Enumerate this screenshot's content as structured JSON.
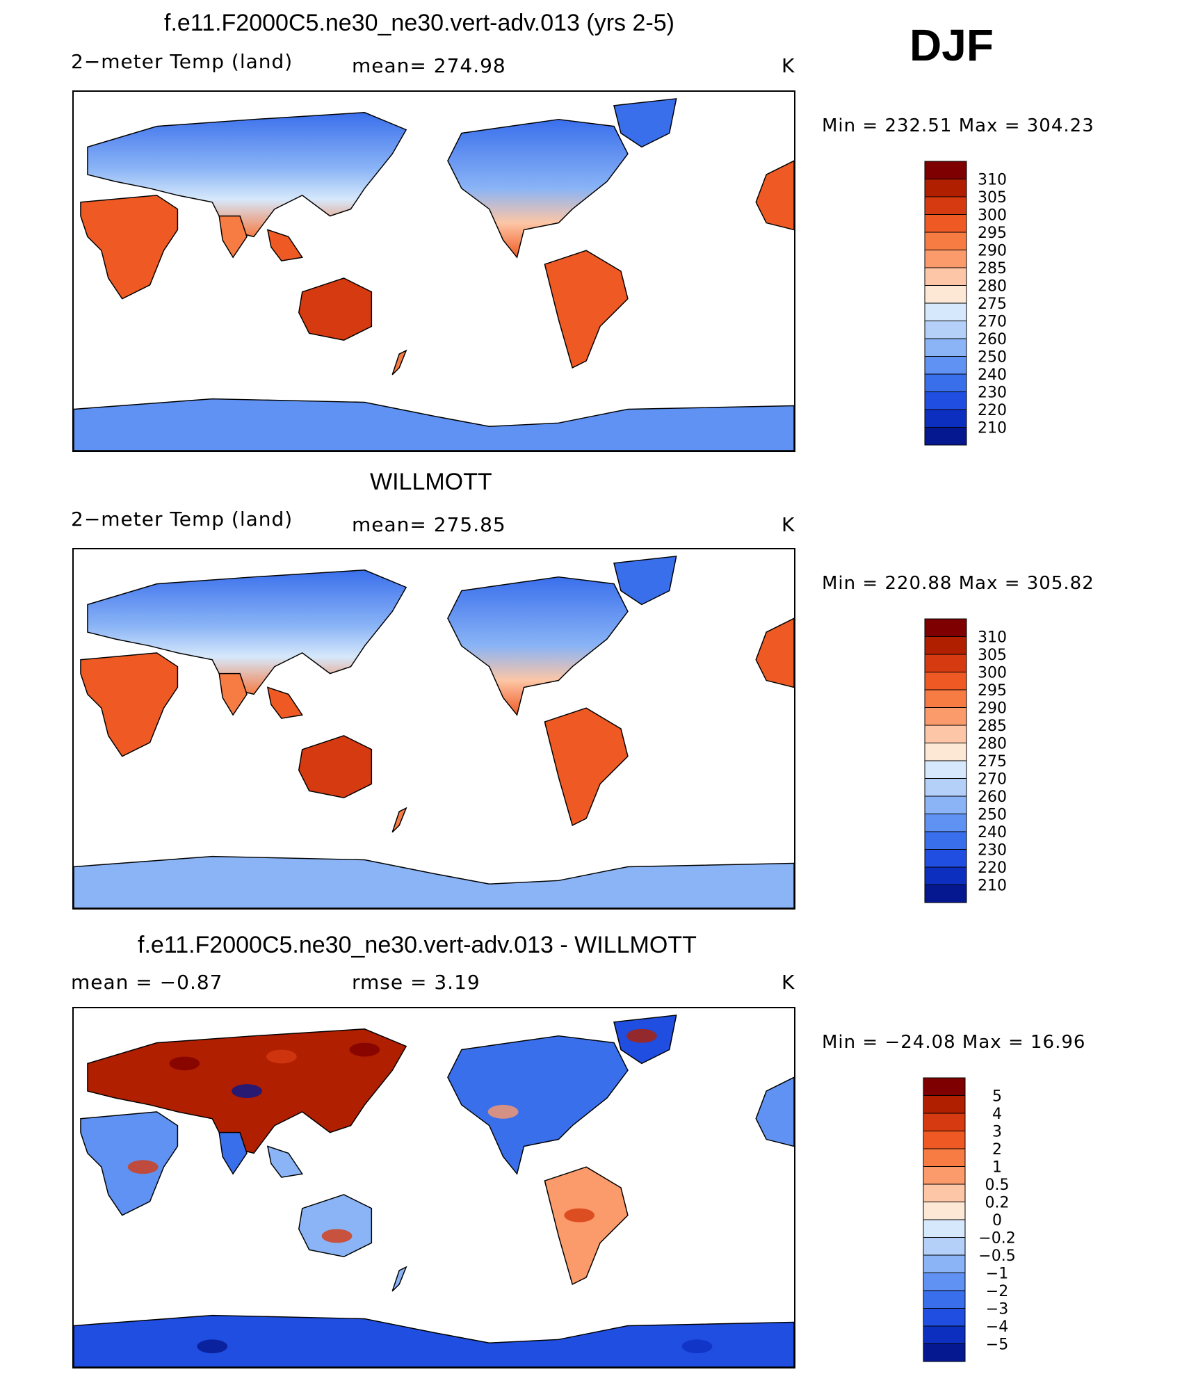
{
  "header": {
    "season": "DJF"
  },
  "panels": [
    {
      "title": "f.e11.F2000C5.ne30_ne30.vert-adv.013 (yrs 2-5)",
      "left_label": "2−meter Temp (land)",
      "mid_label": "mean=  274.98",
      "units": "K",
      "minmax": "Min  =  232.51  Max  =  304.23",
      "colorbar_labels": [
        "310",
        "305",
        "300",
        "295",
        "290",
        "285",
        "280",
        "275",
        "270",
        "260",
        "250",
        "240",
        "230",
        "220",
        "210"
      ],
      "map_caption": "model-temperature-map"
    },
    {
      "title": "WILLMOTT",
      "left_label": "2−meter Temp (land)",
      "mid_label": "mean=  275.85",
      "units": "K",
      "minmax": "Min  =  220.88  Max  =  305.82",
      "colorbar_labels": [
        "310",
        "305",
        "300",
        "295",
        "290",
        "285",
        "280",
        "275",
        "270",
        "260",
        "250",
        "240",
        "230",
        "220",
        "210"
      ],
      "map_caption": "observed-temperature-map"
    },
    {
      "title": "f.e11.F2000C5.ne30_ne30.vert-adv.013 - WILLMOTT",
      "left_label": "mean =    −0.87",
      "mid_label": "rmse =      3.19",
      "units": "K",
      "minmax": "Min  =  −24.08  Max  =    16.96",
      "colorbar_labels": [
        "5",
        "4",
        "3",
        "2",
        "1",
        "0.5",
        "0.2",
        "0",
        "−0.2",
        "−0.5",
        "−1",
        "−2",
        "−3",
        "−4",
        "−5"
      ],
      "map_caption": "difference-map"
    }
  ],
  "colors": {
    "temp_scale": [
      "#7f0000",
      "#b01f00",
      "#d63a10",
      "#ef5a24",
      "#f77c44",
      "#fb9a6a",
      "#fdc6a6",
      "#fde8d6",
      "#d6e8fb",
      "#b5d0f8",
      "#8ab4f6",
      "#5f92f2",
      "#3a6fec",
      "#1f4ee0",
      "#0d2fc0",
      "#06188f"
    ],
    "diff_scale": [
      "#7f0000",
      "#b01f00",
      "#d63a10",
      "#ef5a24",
      "#f77c44",
      "#fb9a6a",
      "#fdc6a6",
      "#fde8d6",
      "#d6e8fb",
      "#b5d0f8",
      "#8ab4f6",
      "#5f92f2",
      "#3a6fec",
      "#1f4ee0",
      "#0d2fc0",
      "#06188f"
    ]
  }
}
